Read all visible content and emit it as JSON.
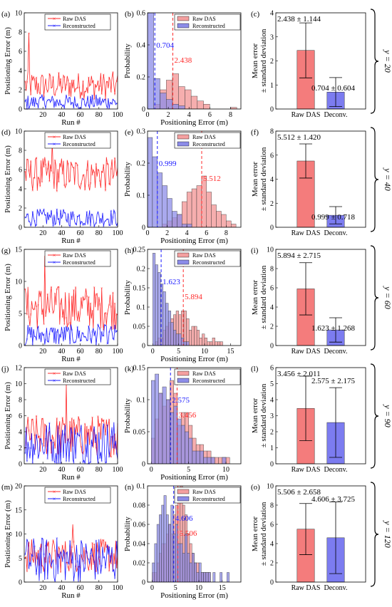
{
  "legend": {
    "raw": "Raw DAS",
    "reconstructed": "Reconstructed"
  },
  "colors": {
    "raw": "#ff2a2a",
    "recon": "#1a1aff",
    "raw_bar": "#f47c7c",
    "recon_bar": "#7c7cf0",
    "raw_hist": "#f4a0a0",
    "recon_hist": "#8c8ce8"
  },
  "axis_labels": {
    "line_x": "Run #",
    "line_y": "Positioning Error (m)",
    "hist_x": "Positioning Error (m)",
    "hist_y": "Probability",
    "bar_y_1": "Mean error",
    "bar_y_2": "± standard deviation"
  },
  "chart_data": [
    {
      "row": 0,
      "bracket_label": "y = 20",
      "line": {
        "type": "line",
        "panel_label": "(a)",
        "xlim": [
          0,
          100
        ],
        "ylim": [
          0,
          10
        ],
        "xticks": [
          20,
          40,
          60,
          80,
          100
        ],
        "yticks": [
          0,
          2,
          4,
          6,
          8,
          10
        ],
        "raw_level": 2.44,
        "raw_spread": 1.1,
        "raw_peak": [
          5,
          7.9
        ],
        "recon_level": 0.7,
        "recon_spread": 0.6
      },
      "hist": {
        "type": "bar",
        "panel_label": "(b)",
        "xlim": [
          0,
          9
        ],
        "ylim": [
          0,
          0.6
        ],
        "xticks": [
          0,
          2,
          4,
          6,
          8
        ],
        "yticks": [
          0,
          0.2,
          0.4,
          0.6
        ],
        "bin_edges": [
          0,
          0.6,
          1.2,
          1.8,
          2.4,
          3.0,
          3.6,
          4.2,
          4.8,
          5.4,
          6.0,
          8.0,
          8.6
        ],
        "raw_probs": [
          0.0,
          0.03,
          0.12,
          0.18,
          0.22,
          0.14,
          0.12,
          0.08,
          0.05,
          0.03,
          0.0,
          0.01
        ],
        "recon_probs": [
          0.6,
          0.19,
          0.1,
          0.06,
          0.03,
          0.02,
          0.0,
          0.0,
          0.0,
          0.0,
          0.0,
          0.0
        ],
        "raw_mean": 2.438,
        "recon_mean": 0.704,
        "raw_mean_label": "2.438",
        "recon_mean_label": "0.704"
      },
      "bar": {
        "type": "bar",
        "panel_label": "(c)",
        "categories": [
          "Raw DAS",
          "Deconv."
        ],
        "values": [
          2.438,
          0.704
        ],
        "errors": [
          1.144,
          0.604
        ],
        "ylim": [
          0,
          4
        ],
        "yticks": [
          0,
          1,
          2,
          3,
          4
        ],
        "raw_annot": "2.438 ± 1.144",
        "recon_annot": "0.704 ± 0.604"
      }
    },
    {
      "row": 1,
      "bracket_label": "y = 40",
      "line": {
        "type": "line",
        "panel_label": "(d)",
        "xlim": [
          0,
          100
        ],
        "ylim": [
          0,
          10
        ],
        "xticks": [
          20,
          40,
          60,
          80,
          100
        ],
        "yticks": [
          0,
          2,
          4,
          6,
          8,
          10
        ],
        "raw_level": 5.5,
        "raw_spread": 1.4,
        "raw_peak": [
          30,
          9.0
        ],
        "recon_level": 1.0,
        "recon_spread": 0.7
      },
      "hist": {
        "type": "bar",
        "panel_label": "(e)",
        "xlim": [
          0,
          9.5
        ],
        "ylim": [
          0,
          0.3
        ],
        "xticks": [
          0,
          2,
          4,
          6,
          8
        ],
        "yticks": [
          0,
          0.1,
          0.2,
          0.3
        ],
        "bin_edges": [
          0,
          0.5,
          1.0,
          1.5,
          2.0,
          2.5,
          3.0,
          3.5,
          4.0,
          4.5,
          5.0,
          5.5,
          6.0,
          6.5,
          7.0,
          7.5,
          8.0,
          8.5,
          9.0
        ],
        "raw_probs": [
          0.0,
          0.0,
          0.0,
          0.01,
          0.02,
          0.03,
          0.04,
          0.08,
          0.11,
          0.12,
          0.13,
          0.16,
          0.11,
          0.07,
          0.05,
          0.04,
          0.02,
          0.01
        ],
        "recon_probs": [
          0.28,
          0.22,
          0.17,
          0.13,
          0.09,
          0.05,
          0.04,
          0.01,
          0.01,
          0.0,
          0.0,
          0.0,
          0.0,
          0.0,
          0.0,
          0.0,
          0.0,
          0.0
        ],
        "raw_mean": 5.512,
        "recon_mean": 0.999,
        "raw_mean_label": "5.512",
        "recon_mean_label": "0.999"
      },
      "bar": {
        "type": "bar",
        "panel_label": "(f)",
        "categories": [
          "Raw DAS",
          "Deconv."
        ],
        "values": [
          5.512,
          0.999
        ],
        "errors": [
          1.42,
          0.718
        ],
        "ylim": [
          0,
          8
        ],
        "yticks": [
          0,
          2,
          4,
          6,
          8
        ],
        "raw_annot": "5.512 ± 1.420",
        "recon_annot": "0.999 ± 0.718"
      }
    },
    {
      "row": 2,
      "bracket_label": "y = 60",
      "line": {
        "type": "line",
        "panel_label": "(g)",
        "xlim": [
          0,
          100
        ],
        "ylim": [
          0,
          15
        ],
        "xticks": [
          20,
          40,
          60,
          80,
          100
        ],
        "yticks": [
          0,
          5,
          10,
          15
        ],
        "raw_level": 5.9,
        "raw_spread": 2.7,
        "raw_peak": [
          22,
          14.0
        ],
        "recon_level": 1.6,
        "recon_spread": 1.3
      },
      "hist": {
        "type": "bar",
        "panel_label": "(h)",
        "xlim": [
          -1,
          17
        ],
        "ylim": [
          0,
          0.25
        ],
        "xticks": [
          0,
          5,
          10,
          15
        ],
        "yticks": [
          0,
          0.05,
          0.1,
          0.15,
          0.2,
          0.25
        ],
        "bin_edges": [
          0,
          0.5,
          1.0,
          1.5,
          2.0,
          2.5,
          3.0,
          3.5,
          4.0,
          4.5,
          5.0,
          5.5,
          6.0,
          6.5,
          7.0,
          7.5,
          8.0,
          8.5,
          9.0,
          9.5,
          10.0,
          10.5,
          11.0,
          11.5,
          12.0,
          12.5,
          13.0,
          13.5,
          14.0
        ],
        "raw_probs": [
          0.0,
          0.01,
          0.02,
          0.02,
          0.04,
          0.05,
          0.06,
          0.07,
          0.08,
          0.09,
          0.08,
          0.09,
          0.09,
          0.07,
          0.04,
          0.05,
          0.05,
          0.04,
          0.02,
          0.03,
          0.02,
          0.01,
          0.01,
          0.02,
          0.01,
          0.01,
          0.01,
          0.0
        ],
        "recon_probs": [
          0.24,
          0.21,
          0.19,
          0.16,
          0.14,
          0.11,
          0.09,
          0.06,
          0.04,
          0.03,
          0.03,
          0.02,
          0.01,
          0.01,
          0.0,
          0.0,
          0.0,
          0.0,
          0.0,
          0.0,
          0.0,
          0.0,
          0.0,
          0.0,
          0.0,
          0.0,
          0.0,
          0.0
        ],
        "raw_mean": 5.894,
        "recon_mean": 1.623,
        "raw_mean_label": "5.894",
        "recon_mean_label": "1.623"
      },
      "bar": {
        "type": "bar",
        "panel_label": "(i)",
        "categories": [
          "Raw DAS",
          "Deconv."
        ],
        "values": [
          5.894,
          1.623
        ],
        "errors": [
          2.715,
          1.268
        ],
        "ylim": [
          0,
          10
        ],
        "yticks": [
          0,
          2,
          4,
          6,
          8,
          10
        ],
        "raw_annot": "5.894 ± 2.715",
        "recon_annot": "1.623 ± 1.268"
      }
    },
    {
      "row": 3,
      "bracket_label": "y = 90",
      "line": {
        "type": "line",
        "panel_label": "(j)",
        "xlim": [
          0,
          100
        ],
        "ylim": [
          0,
          12
        ],
        "xticks": [
          20,
          40,
          60,
          80,
          100
        ],
        "yticks": [
          0,
          2,
          4,
          6,
          8,
          10,
          12
        ],
        "raw_level": 3.5,
        "raw_spread": 2.0,
        "raw_peak": [
          45,
          10.0
        ],
        "recon_level": 2.6,
        "recon_spread": 2.2
      },
      "hist": {
        "type": "bar",
        "panel_label": "(k)",
        "xlim": [
          -0.5,
          12
        ],
        "ylim": [
          0,
          0.15
        ],
        "xticks": [
          0,
          5,
          10
        ],
        "yticks": [
          0,
          0.05,
          0.1,
          0.15
        ],
        "bin_edges": [
          0,
          0.5,
          1.0,
          1.5,
          2.0,
          2.5,
          3.0,
          3.5,
          4.0,
          4.5,
          5.0,
          5.5,
          6.0,
          6.5,
          7.0,
          7.5,
          8.0,
          8.5,
          9.0,
          9.5,
          10.0,
          10.5,
          11.0
        ],
        "raw_probs": [
          0.04,
          0.07,
          0.11,
          0.09,
          0.1,
          0.13,
          0.11,
          0.06,
          0.08,
          0.08,
          0.06,
          0.04,
          0.03,
          0.03,
          0.02,
          0.02,
          0.01,
          0.01,
          0.01,
          0.01,
          0.01,
          0.0
        ],
        "recon_probs": [
          0.13,
          0.14,
          0.11,
          0.12,
          0.1,
          0.08,
          0.09,
          0.07,
          0.06,
          0.05,
          0.04,
          0.02,
          0.02,
          0.02,
          0.01,
          0.01,
          0.01,
          0.0,
          0.0,
          0.01,
          0.0,
          0.0
        ],
        "raw_mean": 3.456,
        "recon_mean": 2.575,
        "raw_mean_label": "3.456",
        "recon_mean_label": "2.575"
      },
      "bar": {
        "type": "bar",
        "panel_label": "(l)",
        "categories": [
          "Raw DAS",
          "Deconv."
        ],
        "values": [
          3.456,
          2.575
        ],
        "errors": [
          2.011,
          2.175
        ],
        "ylim": [
          0,
          6
        ],
        "yticks": [
          0,
          1,
          2,
          3,
          4,
          5,
          6
        ],
        "raw_annot": "3.456 ± 2.011",
        "recon_annot": "2.575 ± 2.175"
      }
    },
    {
      "row": 4,
      "bracket_label": "y = 120",
      "line": {
        "type": "line",
        "panel_label": "(m)",
        "xlim": [
          0,
          100
        ],
        "ylim": [
          0,
          20
        ],
        "xticks": [
          20,
          40,
          60,
          80,
          100
        ],
        "yticks": [
          0,
          5,
          10,
          15,
          20
        ],
        "raw_level": 5.5,
        "raw_spread": 2.7,
        "raw_peak": [
          52,
          12.0
        ],
        "recon_level": 4.6,
        "recon_spread": 3.7
      },
      "hist": {
        "type": "bar",
        "panel_label": "(n)",
        "xlim": [
          -1,
          19
        ],
        "ylim": [
          0,
          0.1
        ],
        "xticks": [
          0,
          5,
          10,
          15
        ],
        "yticks": [
          0,
          0.02,
          0.04,
          0.06,
          0.08,
          0.1
        ],
        "bin_edges": [
          0,
          0.5,
          1.0,
          1.5,
          2.0,
          2.5,
          3.0,
          3.5,
          4.0,
          4.5,
          5.0,
          5.5,
          6.0,
          6.5,
          7.0,
          7.5,
          8.0,
          8.5,
          9.0,
          9.5,
          10.0,
          10.5,
          11.0,
          11.5,
          12.0,
          12.5,
          13.0,
          13.5,
          14.0,
          14.5,
          15.0,
          15.5,
          16.0,
          16.5,
          17.0
        ],
        "raw_probs": [
          0.01,
          0.01,
          0.02,
          0.03,
          0.04,
          0.04,
          0.05,
          0.06,
          0.05,
          0.07,
          0.08,
          0.09,
          0.1,
          0.08,
          0.07,
          0.05,
          0.04,
          0.03,
          0.02,
          0.02,
          0.01,
          0.01,
          0.01,
          0.01,
          0.01,
          0.0,
          0.0,
          0.0,
          0.0,
          0.0,
          0.0,
          0.0,
          0.0,
          0.0
        ],
        "recon_probs": [
          0.02,
          0.04,
          0.06,
          0.07,
          0.08,
          0.09,
          0.07,
          0.06,
          0.08,
          0.05,
          0.06,
          0.04,
          0.04,
          0.03,
          0.05,
          0.03,
          0.02,
          0.03,
          0.02,
          0.01,
          0.02,
          0.01,
          0.01,
          0.01,
          0.01,
          0.0,
          0.01,
          0.0,
          0.0,
          0.01,
          0.0,
          0.0,
          0.01,
          0.0
        ],
        "raw_mean": 5.506,
        "recon_mean": 4.606,
        "raw_mean_label": "5.506",
        "recon_mean_label": "4.606"
      },
      "bar": {
        "type": "bar",
        "panel_label": "(o)",
        "categories": [
          "Raw DAS",
          "Deconv."
        ],
        "values": [
          5.506,
          4.606
        ],
        "errors": [
          2.658,
          3.725
        ],
        "ylim": [
          0,
          10
        ],
        "yticks": [
          0,
          2,
          4,
          6,
          8,
          10
        ],
        "raw_annot": "5.506 ± 2.658",
        "recon_annot": "4.606 ± 3.725"
      }
    }
  ]
}
